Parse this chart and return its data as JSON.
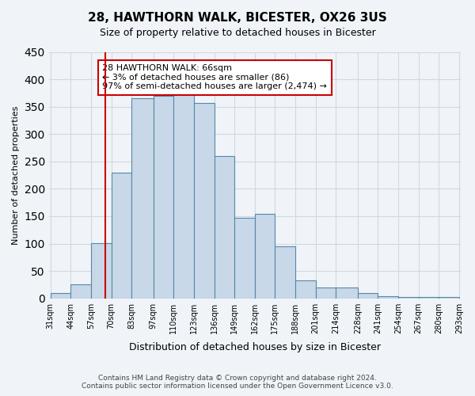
{
  "title": "28, HAWTHORN WALK, BICESTER, OX26 3US",
  "subtitle": "Size of property relative to detached houses in Bicester",
  "xlabel": "Distribution of detached houses by size in Bicester",
  "ylabel": "Number of detached properties",
  "bin_labels": [
    "31sqm",
    "44sqm",
    "57sqm",
    "70sqm",
    "83sqm",
    "97sqm",
    "110sqm",
    "123sqm",
    "136sqm",
    "149sqm",
    "162sqm",
    "175sqm",
    "188sqm",
    "201sqm",
    "214sqm",
    "228sqm",
    "241sqm",
    "254sqm",
    "267sqm",
    "280sqm",
    "293sqm"
  ],
  "bin_edges": [
    31,
    44,
    57,
    70,
    83,
    97,
    110,
    123,
    136,
    149,
    162,
    175,
    188,
    201,
    214,
    228,
    241,
    254,
    267,
    280,
    293
  ],
  "bar_heights": [
    10,
    25,
    101,
    230,
    365,
    370,
    373,
    357,
    260,
    147,
    154,
    95,
    33,
    20,
    20,
    10,
    4,
    3,
    3,
    2
  ],
  "bar_color": "#c8d8e8",
  "bar_edge_color": "#5588aa",
  "vline_x": 66,
  "vline_color": "#cc0000",
  "ylim": [
    0,
    450
  ],
  "yticks": [
    0,
    50,
    100,
    150,
    200,
    250,
    300,
    350,
    400,
    450
  ],
  "annotation_text": "28 HAWTHORN WALK: 66sqm\n← 3% of detached houses are smaller (86)\n97% of semi-detached houses are larger (2,474) →",
  "annotation_box_color": "#ffffff",
  "annotation_box_edge_color": "#cc0000",
  "footnote_line1": "Contains HM Land Registry data © Crown copyright and database right 2024.",
  "footnote_line2": "Contains public sector information licensed under the Open Government Licence v3.0.",
  "grid_color": "#d0d8e0",
  "bg_color": "#f0f4f8"
}
